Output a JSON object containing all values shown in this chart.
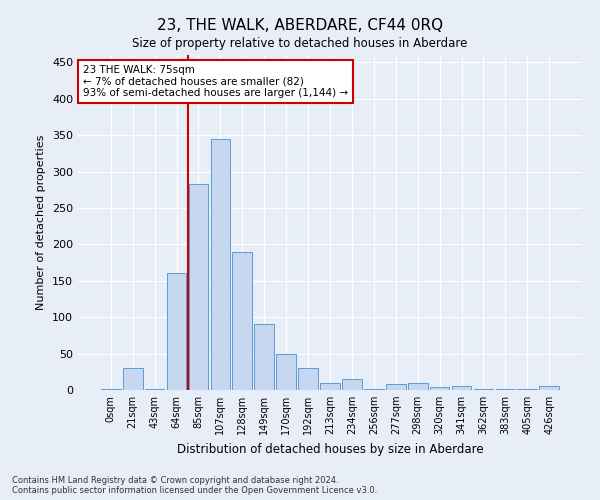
{
  "title": "23, THE WALK, ABERDARE, CF44 0RQ",
  "subtitle": "Size of property relative to detached houses in Aberdare",
  "xlabel": "Distribution of detached houses by size in Aberdare",
  "ylabel": "Number of detached properties",
  "footer_line1": "Contains HM Land Registry data © Crown copyright and database right 2024.",
  "footer_line2": "Contains public sector information licensed under the Open Government Licence v3.0.",
  "bar_labels": [
    "0sqm",
    "21sqm",
    "43sqm",
    "64sqm",
    "85sqm",
    "107sqm",
    "128sqm",
    "149sqm",
    "170sqm",
    "192sqm",
    "213sqm",
    "234sqm",
    "256sqm",
    "277sqm",
    "298sqm",
    "320sqm",
    "341sqm",
    "362sqm",
    "383sqm",
    "405sqm",
    "426sqm"
  ],
  "bar_values": [
    2,
    30,
    1,
    160,
    283,
    345,
    190,
    90,
    50,
    30,
    10,
    15,
    1,
    8,
    10,
    4,
    5,
    1,
    1,
    1,
    5
  ],
  "bar_color": "#c5d8f0",
  "bar_edge_color": "#5b9bd5",
  "background_color": "#e8eef7",
  "grid_color": "#ffffff",
  "vline_x": 3.5,
  "vline_color": "#cc0000",
  "annotation_text": "23 THE WALK: 75sqm\n← 7% of detached houses are smaller (82)\n93% of semi-detached houses are larger (1,144) →",
  "annotation_box_color": "#ffffff",
  "annotation_box_edge": "#cc0000",
  "ylim": [
    0,
    460
  ],
  "yticks": [
    0,
    50,
    100,
    150,
    200,
    250,
    300,
    350,
    400,
    450
  ]
}
